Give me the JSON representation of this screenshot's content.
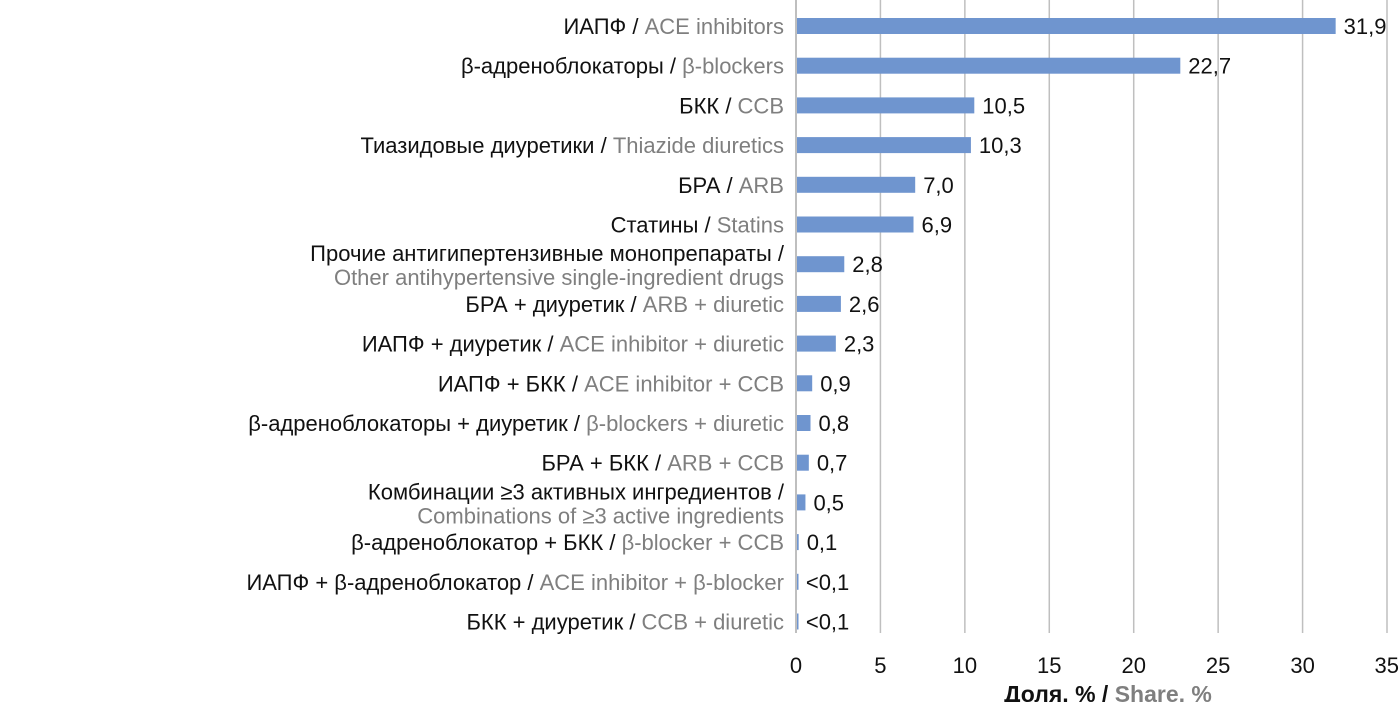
{
  "chart_data": {
    "type": "bar",
    "orientation": "horizontal",
    "bar_color": "#6f95cf",
    "grid_color": "#bfbfbf",
    "xlim": [
      0,
      35
    ],
    "x_ticks": [
      "0",
      "5",
      "10",
      "15",
      "20",
      "25",
      "30",
      "35"
    ],
    "xlabel": {
      "ru": "Доля, %",
      "sep": " / ",
      "en": "Share, %"
    },
    "categories": [
      {
        "ru": "ИАПФ",
        "en": "ACE inhibitors",
        "value": 31.9,
        "label": "31,9"
      },
      {
        "ru": "β-адреноблокаторы",
        "en": "β-blockers",
        "value": 22.7,
        "label": "22,7"
      },
      {
        "ru": "БКК",
        "en": "CCB",
        "value": 10.5,
        "label": "10,5"
      },
      {
        "ru": "Тиазидовые диуретики",
        "en": "Thiazide diuretics",
        "value": 10.3,
        "label": "10,3"
      },
      {
        "ru": "БРА",
        "en": "ARB",
        "value": 7.0,
        "label": "7,0"
      },
      {
        "ru": "Статины",
        "en": "Statins",
        "value": 6.9,
        "label": "6,9"
      },
      {
        "ru": "Прочие антигипертензивные монопрепараты",
        "en": "Other antihypertensive single-ingredient drugs",
        "value": 2.8,
        "label": "2,8"
      },
      {
        "ru": "БРА + диуретик",
        "en": "ARB + diuretic",
        "value": 2.6,
        "label": "2,6"
      },
      {
        "ru": "ИАПФ + диуретик",
        "en": "ACE inhibitor + diuretic",
        "value": 2.3,
        "label": "2,3"
      },
      {
        "ru": "ИАПФ + БКК",
        "en": "ACE inhibitor + CCB",
        "value": 0.9,
        "label": "0,9"
      },
      {
        "ru": "β-адреноблокаторы + диуретик",
        "en": "β-blockers + diuretic",
        "value": 0.8,
        "label": "0,8"
      },
      {
        "ru": "БРА + БКК",
        "en": "ARB + CCB",
        "value": 0.7,
        "label": "0,7"
      },
      {
        "ru": "Комбинации ≥3 активных ингредиентов",
        "en": "Combinations of ≥3 active ingredients",
        "value": 0.5,
        "label": "0,5"
      },
      {
        "ru": "β-адреноблокатор + БКК",
        "en": "β-blocker + CCB",
        "value": 0.1,
        "label": "0,1"
      },
      {
        "ru": "ИАПФ + β-адреноблокатор",
        "en": "ACE inhibitor + β-blocker",
        "value": 0.05,
        "label": "<0,1"
      },
      {
        "ru": "БКК + диуретик",
        "en": "CCB + diuretic",
        "value": 0.05,
        "label": "<0,1"
      }
    ]
  }
}
